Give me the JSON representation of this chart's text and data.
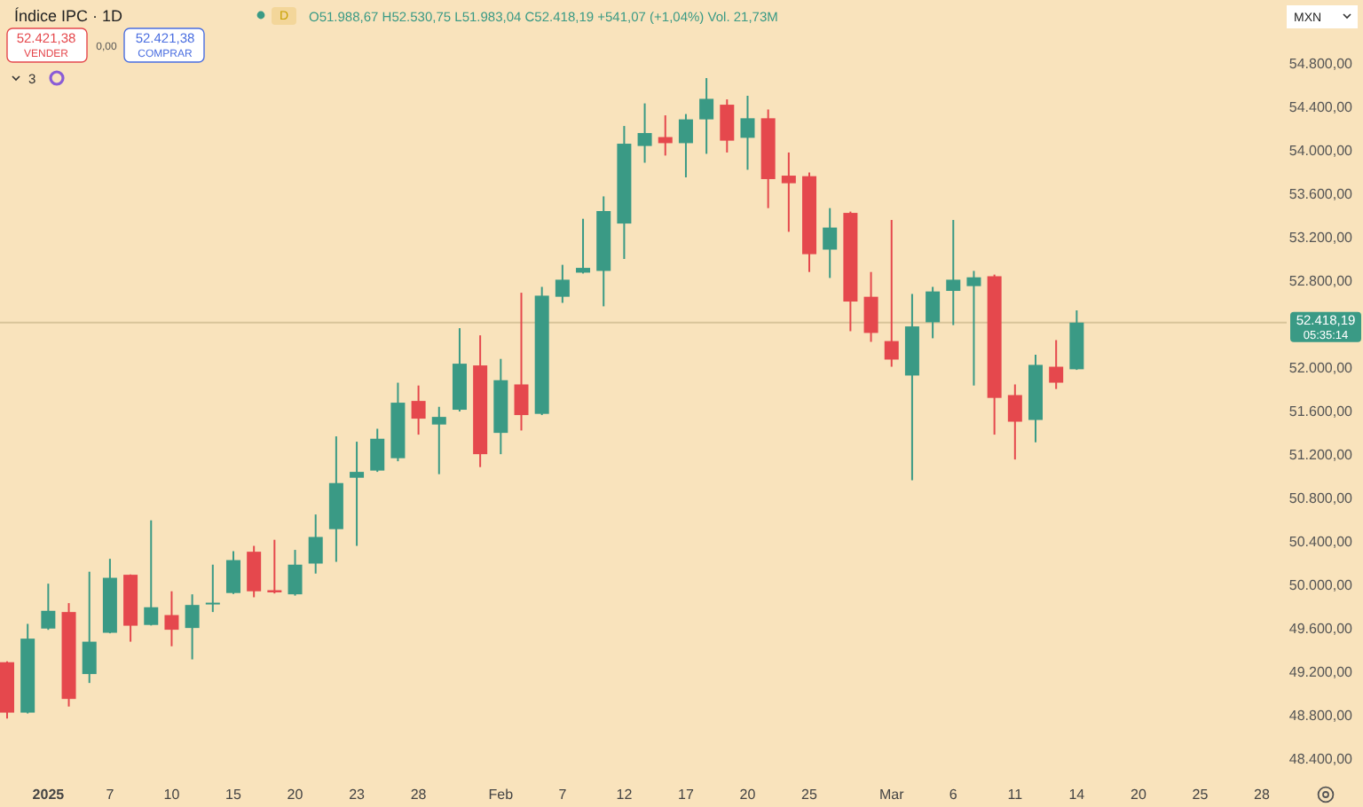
{
  "chart_data": {
    "type": "candlestick",
    "title": "Índice IPC · 1D",
    "categories": [
      null,
      null,
      "2025",
      null,
      null,
      "7",
      null,
      null,
      "10",
      null,
      null,
      "15",
      null,
      null,
      "20",
      null,
      null,
      "23",
      null,
      null,
      "28",
      null,
      null,
      null,
      "Feb",
      null,
      null,
      "7",
      null,
      null,
      "12",
      null,
      null,
      "17",
      null,
      null,
      "20",
      null,
      null,
      "25",
      null,
      null,
      null,
      "Mar",
      null,
      null,
      "6",
      null,
      null,
      "11",
      null,
      null,
      "14",
      null,
      null,
      "20",
      null,
      null,
      "25",
      null,
      null,
      "28"
    ],
    "ohlc": [
      [
        49292,
        49300,
        48774,
        48828
      ],
      [
        48828,
        49645,
        48820,
        49509
      ],
      [
        49602,
        50015,
        49590,
        49765
      ],
      [
        49754,
        49836,
        48884,
        48954
      ],
      [
        49183,
        50125,
        49101,
        49481
      ],
      [
        49563,
        50244,
        49558,
        50069
      ],
      [
        50097,
        50100,
        49481,
        49628
      ],
      [
        49635,
        50598,
        49630,
        49798
      ],
      [
        49726,
        49945,
        49439,
        49591
      ],
      [
        49607,
        49917,
        49318,
        49819
      ],
      [
        49826,
        50190,
        49754,
        49840
      ],
      [
        49929,
        50314,
        49920,
        50232
      ],
      [
        50309,
        50363,
        49890,
        49945
      ],
      [
        49955,
        50419,
        49925,
        49935
      ],
      [
        49917,
        50326,
        49905,
        50190
      ],
      [
        50200,
        50652,
        50108,
        50445
      ],
      [
        50517,
        51371,
        50216,
        50941
      ],
      [
        50990,
        51322,
        50363,
        51044
      ],
      [
        51056,
        51441,
        51044,
        51349
      ],
      [
        51170,
        51865,
        51142,
        51681
      ],
      [
        51697,
        51839,
        51387,
        51534
      ],
      [
        51480,
        51643,
        51023,
        51550
      ],
      [
        51616,
        52367,
        51600,
        52040
      ],
      [
        52024,
        52301,
        51088,
        51207
      ],
      [
        51403,
        52084,
        51207,
        51888
      ],
      [
        51849,
        52693,
        51425,
        51567
      ],
      [
        51578,
        52747,
        51567,
        52666
      ],
      [
        52656,
        52950,
        52600,
        52813
      ],
      [
        52878,
        53374,
        52870,
        52922
      ],
      [
        52894,
        53580,
        52568,
        53445
      ],
      [
        53330,
        54228,
        53004,
        54065
      ],
      [
        54044,
        54436,
        53890,
        54163
      ],
      [
        54126,
        54326,
        53956,
        54070
      ],
      [
        54070,
        54338,
        53755,
        54289
      ],
      [
        54289,
        54669,
        53972,
        54478
      ],
      [
        54424,
        54473,
        53984,
        54093
      ],
      [
        54119,
        54506,
        53825,
        54299
      ],
      [
        54299,
        54380,
        53472,
        53739
      ],
      [
        53771,
        53984,
        53254,
        53701
      ],
      [
        53766,
        53800,
        52884,
        53048
      ],
      [
        53090,
        53472,
        52829,
        53293
      ],
      [
        53428,
        53440,
        52339,
        52612
      ],
      [
        52656,
        52884,
        52241,
        52323
      ],
      [
        52248,
        53363,
        52012,
        52078
      ],
      [
        51931,
        52682,
        50967,
        52383
      ],
      [
        52421,
        52747,
        52274,
        52705
      ],
      [
        52710,
        53363,
        52395,
        52813
      ],
      [
        52754,
        52894,
        51839,
        52835
      ],
      [
        52845,
        52860,
        51387,
        51725
      ],
      [
        51751,
        51849,
        51158,
        51506
      ],
      [
        51522,
        52122,
        51317,
        52029
      ],
      [
        52012,
        52257,
        51807,
        51865
      ],
      [
        51988.67,
        52530.75,
        51983.04,
        52418.19
      ],
      null,
      null,
      null,
      null,
      null,
      null,
      null,
      null,
      null
    ],
    "colors": [
      "#e5484d",
      "#3a9a85",
      "#3a9a85",
      "#e5484d",
      "#3a9a85",
      "#3a9a85",
      "#e5484d",
      "#3a9a85",
      "#e5484d",
      "#3a9a85",
      "#3a9a85",
      "#3a9a85",
      "#e5484d",
      "#e5484d",
      "#3a9a85",
      "#3a9a85",
      "#3a9a85",
      "#3a9a85",
      "#3a9a85",
      "#3a9a85",
      "#e5484d",
      "#3a9a85",
      "#3a9a85",
      "#e5484d",
      "#3a9a85",
      "#e5484d",
      "#3a9a85",
      "#3a9a85",
      "#3a9a85",
      "#3a9a85",
      "#3a9a85",
      "#3a9a85",
      "#e5484d",
      "#3a9a85",
      "#3a9a85",
      "#e5484d",
      "#3a9a85",
      "#e5484d",
      "#e5484d",
      "#e5484d",
      "#3a9a85",
      "#e5484d",
      "#e5484d",
      "#e5484d",
      "#3a9a85",
      "#3a9a85",
      "#3a9a85",
      "#3a9a85",
      "#e5484d",
      "#e5484d",
      "#3a9a85",
      "#e5484d",
      "#3a9a85",
      null,
      null,
      null,
      null,
      null,
      null,
      null,
      null,
      null
    ],
    "ylim": [
      48400,
      54800
    ],
    "yticks": [
      {
        "value": 48400,
        "label": "48.400,00"
      },
      {
        "value": 48800,
        "label": "48.800,00"
      },
      {
        "value": 49200,
        "label": "49.200,00"
      },
      {
        "value": 49600,
        "label": "49.600,00"
      },
      {
        "value": 50000,
        "label": "50.000,00"
      },
      {
        "value": 50400,
        "label": "50.400,00"
      },
      {
        "value": 50800,
        "label": "50.800,00"
      },
      {
        "value": 51200,
        "label": "51.200,00"
      },
      {
        "value": 51600,
        "label": "51.600,00"
      },
      {
        "value": 52000,
        "label": "52.000,00"
      },
      {
        "value": 52800,
        "label": "52.800,00"
      },
      {
        "value": 53200,
        "label": "53.200,00"
      },
      {
        "value": 53600,
        "label": "53.600,00"
      },
      {
        "value": 54000,
        "label": "54.000,00"
      },
      {
        "value": 54400,
        "label": "54.400,00"
      },
      {
        "value": 54800,
        "label": "54.800,00"
      }
    ],
    "ref_lines": [
      {
        "axis": "y",
        "value": 52418.19,
        "label": "52.418,19",
        "color": "#d8c49a"
      }
    ],
    "annotations": [
      "O51.988,67 H52.530,75 L51.983,04 C52.418,19 +541,07 (+1,04%) Vol. 21,73M",
      "52.421,38",
      "VENDER",
      "0,00",
      "52.421,38",
      "COMPRAR",
      "3",
      "MXN",
      "05:35:14",
      "D"
    ],
    "grid": false
  }
}
